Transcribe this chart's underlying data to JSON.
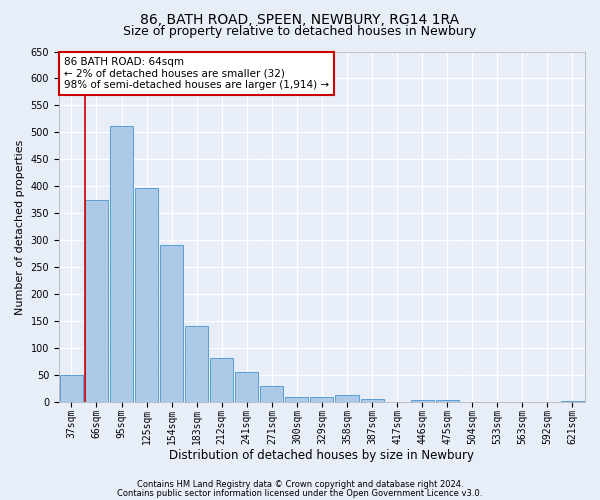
{
  "title1": "86, BATH ROAD, SPEEN, NEWBURY, RG14 1RA",
  "title2": "Size of property relative to detached houses in Newbury",
  "xlabel": "Distribution of detached houses by size in Newbury",
  "ylabel": "Number of detached properties",
  "footer1": "Contains HM Land Registry data © Crown copyright and database right 2024.",
  "footer2": "Contains public sector information licensed under the Open Government Licence v3.0.",
  "categories": [
    "37sqm",
    "66sqm",
    "95sqm",
    "125sqm",
    "154sqm",
    "183sqm",
    "212sqm",
    "241sqm",
    "271sqm",
    "300sqm",
    "329sqm",
    "358sqm",
    "387sqm",
    "417sqm",
    "446sqm",
    "475sqm",
    "504sqm",
    "533sqm",
    "563sqm",
    "592sqm",
    "621sqm"
  ],
  "values": [
    50,
    375,
    512,
    397,
    292,
    142,
    82,
    57,
    30,
    10,
    10,
    13,
    7,
    0,
    5,
    4,
    0,
    0,
    0,
    0,
    3
  ],
  "bar_color": "#adc9e8",
  "bar_edge_color": "#5a9fd4",
  "highlight_line_color": "#cc0000",
  "highlight_bar_index": 1,
  "annotation_text": "86 BATH ROAD: 64sqm\n← 2% of detached houses are smaller (32)\n98% of semi-detached houses are larger (1,914) →",
  "annotation_box_color": "white",
  "annotation_box_edge": "#cc0000",
  "ylim": [
    0,
    650
  ],
  "yticks": [
    0,
    50,
    100,
    150,
    200,
    250,
    300,
    350,
    400,
    450,
    500,
    550,
    600,
    650
  ],
  "bg_color": "#e8eef8",
  "plot_bg_color": "#e8eef8",
  "title1_fontsize": 10,
  "title2_fontsize": 9,
  "xlabel_fontsize": 8.5,
  "ylabel_fontsize": 8,
  "tick_fontsize": 7,
  "annotation_fontsize": 7.5,
  "footer_fontsize": 6
}
